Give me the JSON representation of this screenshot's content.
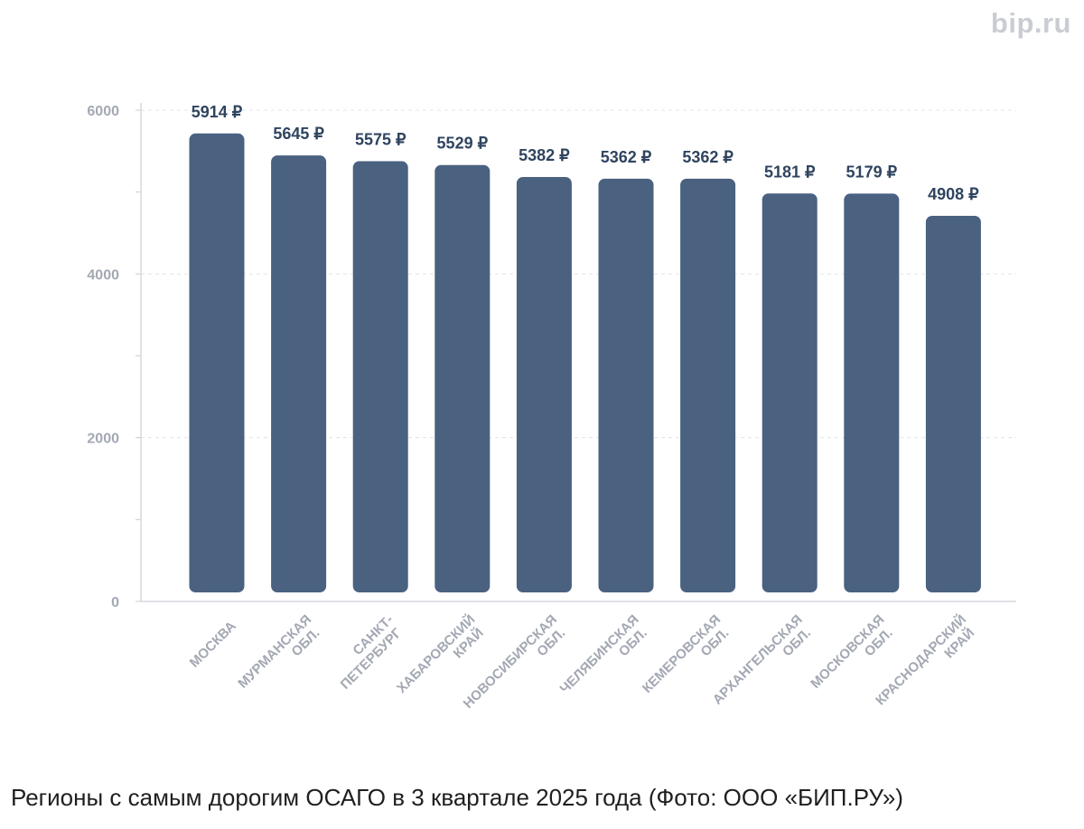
{
  "watermark": "bip.ru",
  "caption": "Регионы с самым дорогим ОСАГО в 3 квартале 2025 года (Фото: ООО «БИП.РУ»)",
  "colors": {
    "bar": "#4a6180",
    "label": "#2f4460",
    "axis": "#a3a8b3",
    "grid": "#e2e4e8"
  },
  "chart_data": {
    "type": "bar",
    "title": "",
    "xlabel": "",
    "ylabel": "",
    "ylim": [
      0,
      6000
    ],
    "yticks": [
      0,
      2000,
      4000,
      6000
    ],
    "grid": true,
    "value_suffix": " ₽",
    "categories": [
      [
        "МОСКВА"
      ],
      [
        "МУРМАНСКАЯ",
        "ОБЛ."
      ],
      [
        "САНКТ-",
        "ПЕТЕРБУРГ"
      ],
      [
        "ХАБАРОВСКИЙ",
        "КРАЙ"
      ],
      [
        "НОВОСИБИРСКАЯ",
        "ОБЛ."
      ],
      [
        "ЧЕЛЯБИНСКАЯ",
        "ОБЛ."
      ],
      [
        "КЕМЕРОВСКАЯ",
        "ОБЛ."
      ],
      [
        "АРХАНГЕЛЬСКАЯ",
        "ОБЛ."
      ],
      [
        "МОСКОВСКАЯ",
        "ОБЛ."
      ],
      [
        "КРАСНОДАРСКИЙ",
        "КРАЙ"
      ]
    ],
    "values": [
      5914,
      5645,
      5575,
      5529,
      5382,
      5362,
      5362,
      5181,
      5179,
      4908
    ]
  }
}
